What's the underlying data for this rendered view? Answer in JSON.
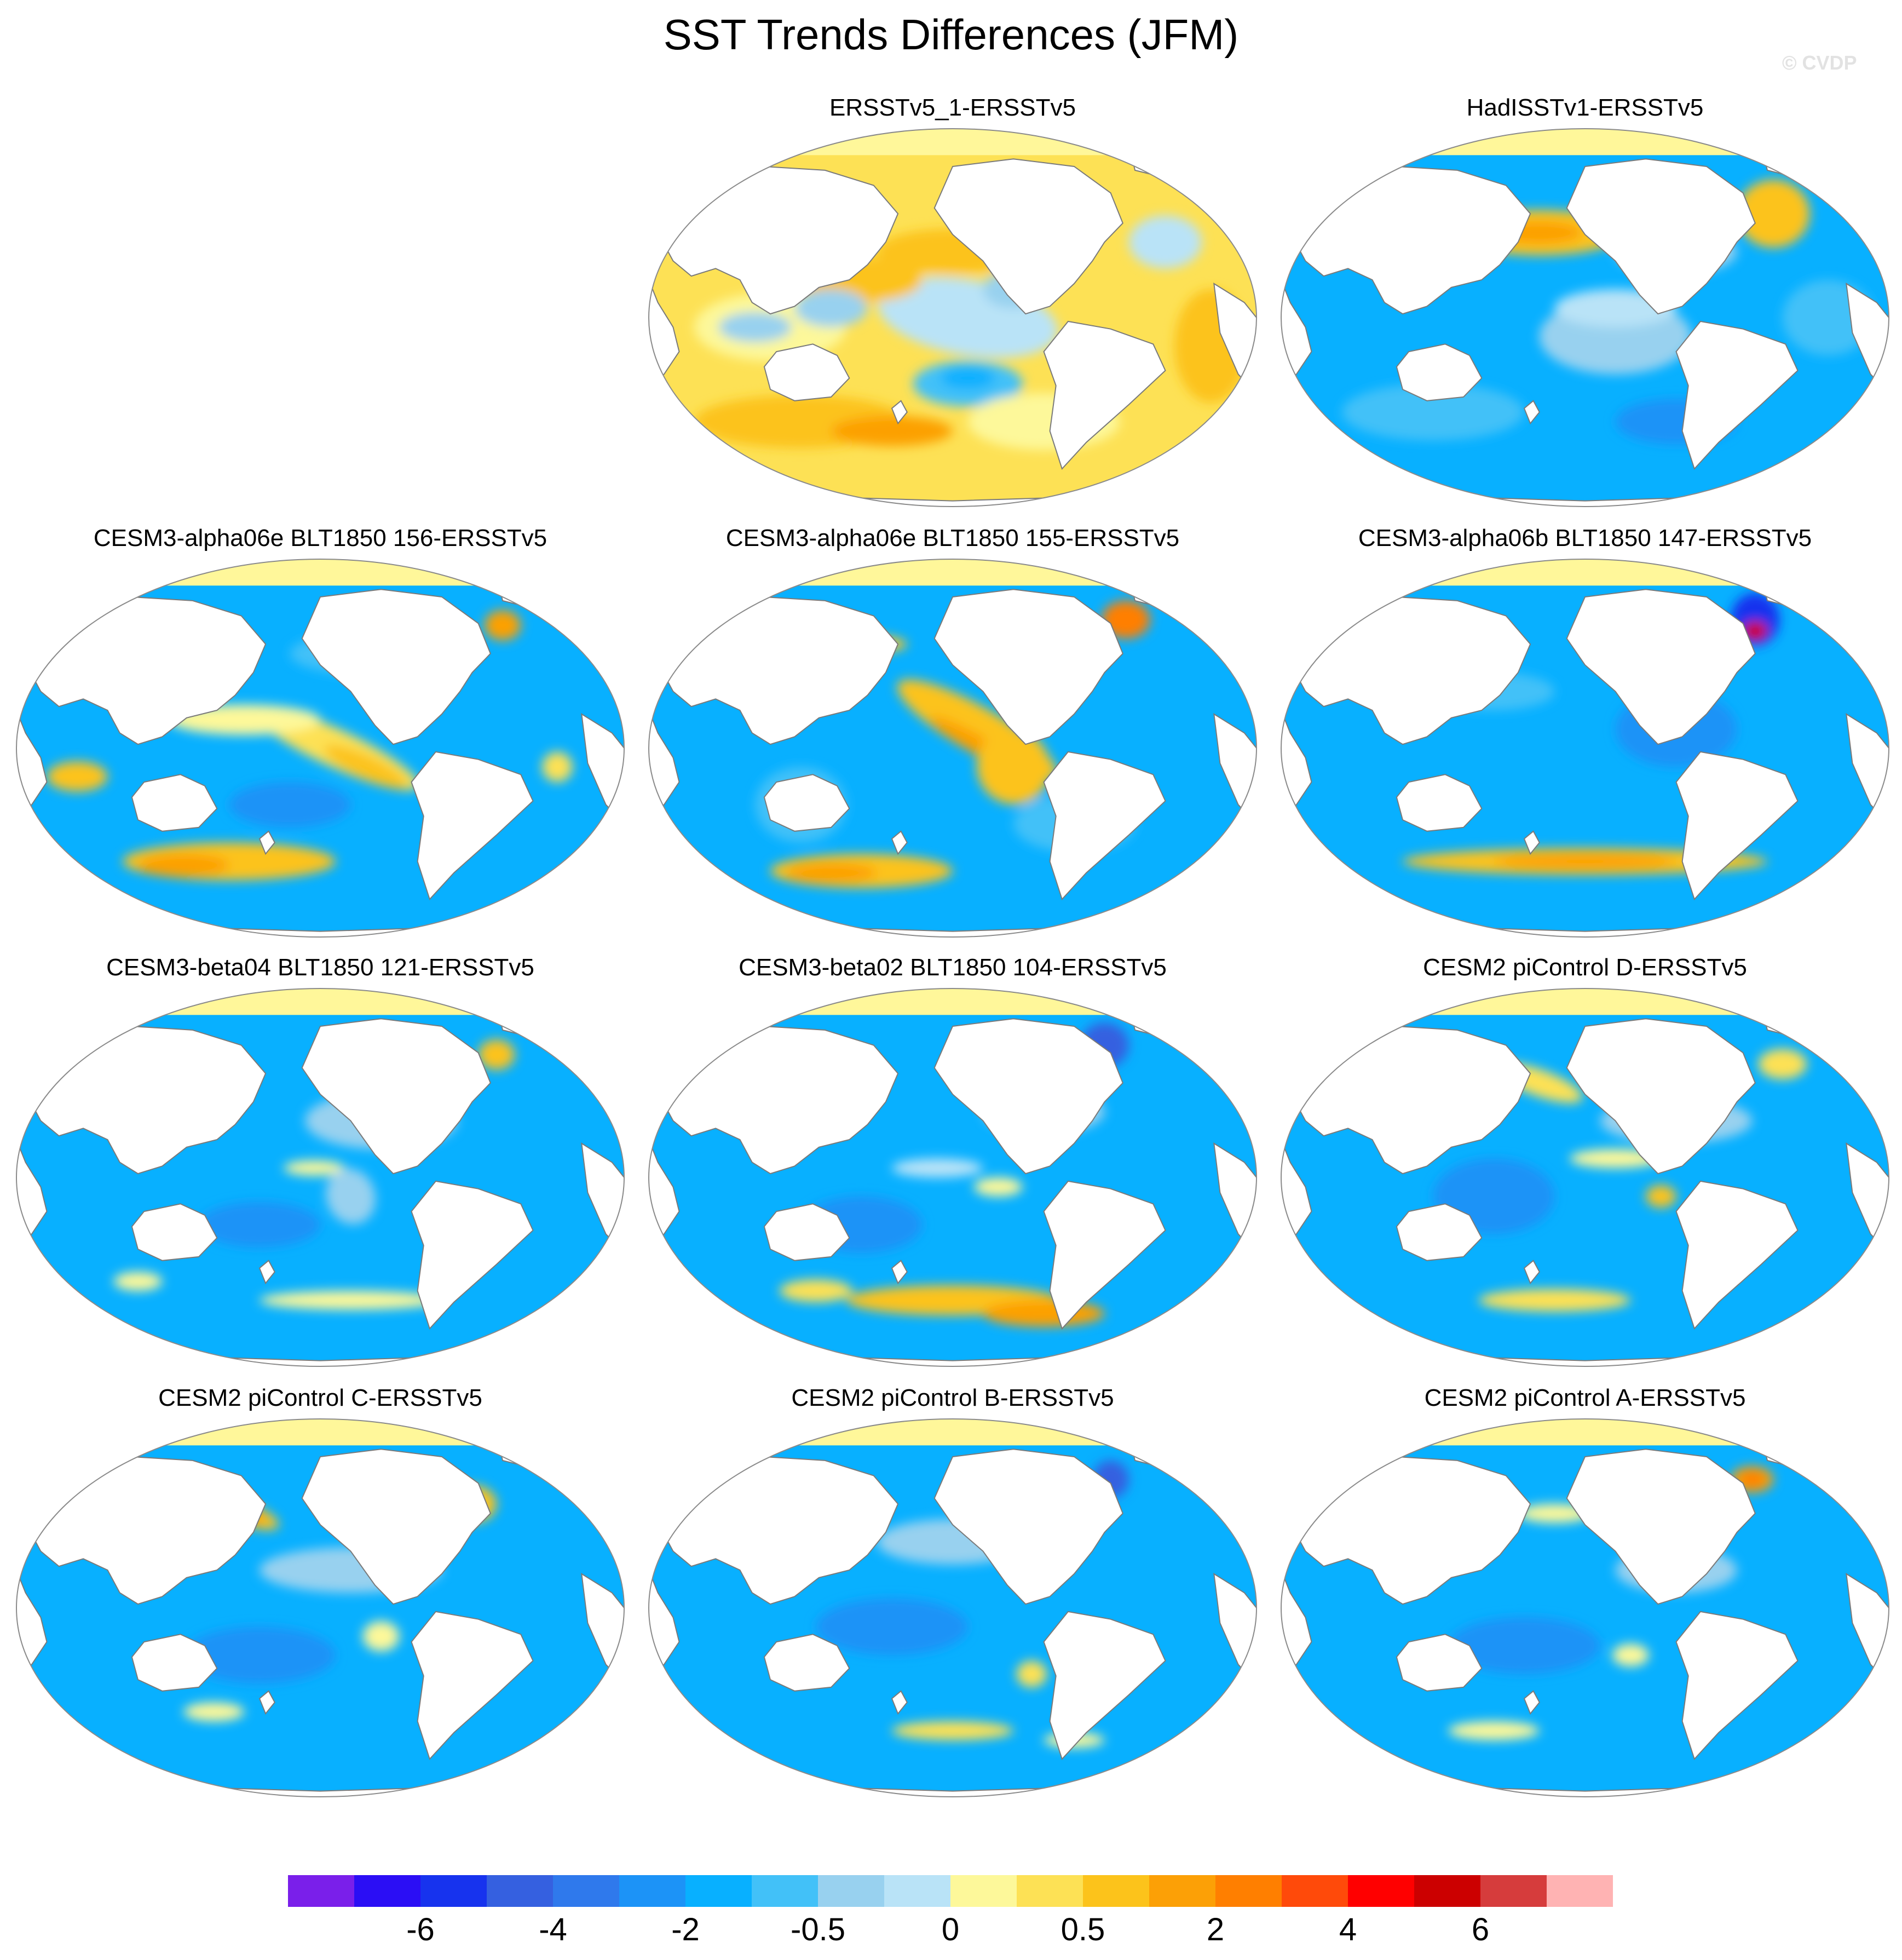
{
  "title": "SST Trends Differences (JFM)",
  "watermark": "© CVDP",
  "colors": {
    "land": "#ffffff",
    "coast": "#7a7a7a",
    "sea_ice": "#fff79a",
    "levels": [
      "#7a1fea",
      "#2b0ef5",
      "#1733ee",
      "#3560e0",
      "#2f79ec",
      "#1c93f7",
      "#08b0ff",
      "#42c1f8",
      "#98d1ef",
      "#b9e3f7",
      "#fdf89a",
      "#fde155",
      "#fcc31b",
      "#fca006",
      "#ff7f00",
      "#ff4a0a",
      "#ff0000",
      "#cc0000",
      "#d63c3c",
      "#ffb3b3"
    ]
  },
  "colorbar": {
    "labels": [
      "-6",
      "-4",
      "-2",
      "-0.5",
      "0",
      "0.5",
      "2",
      "4",
      "6"
    ]
  },
  "panels": [
    {
      "title": "ERSST v5_1-ERSST v5",
      "scheme": "warm"
    },
    {
      "title": "HadISSTv1-ERSSTv5",
      "scheme": "had"
    },
    {
      "title": "CESM3-alpha06e BLT1850 156-ERSSTv5",
      "scheme": "a156"
    },
    {
      "title": "CESM3-alpha06e BLT1850 155-ERSSTv5",
      "scheme": "a155"
    },
    {
      "title": "CESM3-alpha06b BLT1850 147-ERSSTv5",
      "scheme": "a147"
    },
    {
      "title": "CESM3-beta04 BLT1850 121-ERSSTv5",
      "scheme": "b121"
    },
    {
      "title": "CESM3-beta02 BLT1850 104-ERSSTv5",
      "scheme": "b104"
    },
    {
      "title": "CESM2 piControl D-ERSSTv5",
      "scheme": "pcD"
    },
    {
      "title": "CESM2 piControl C-ERSSTv5",
      "scheme": "pcC"
    },
    {
      "title": "CESM2 piControl B-ERSSTv5",
      "scheme": "pcB"
    },
    {
      "title": "CESM2 piControl A-ERSSTv5",
      "scheme": "pcA"
    }
  ]
}
